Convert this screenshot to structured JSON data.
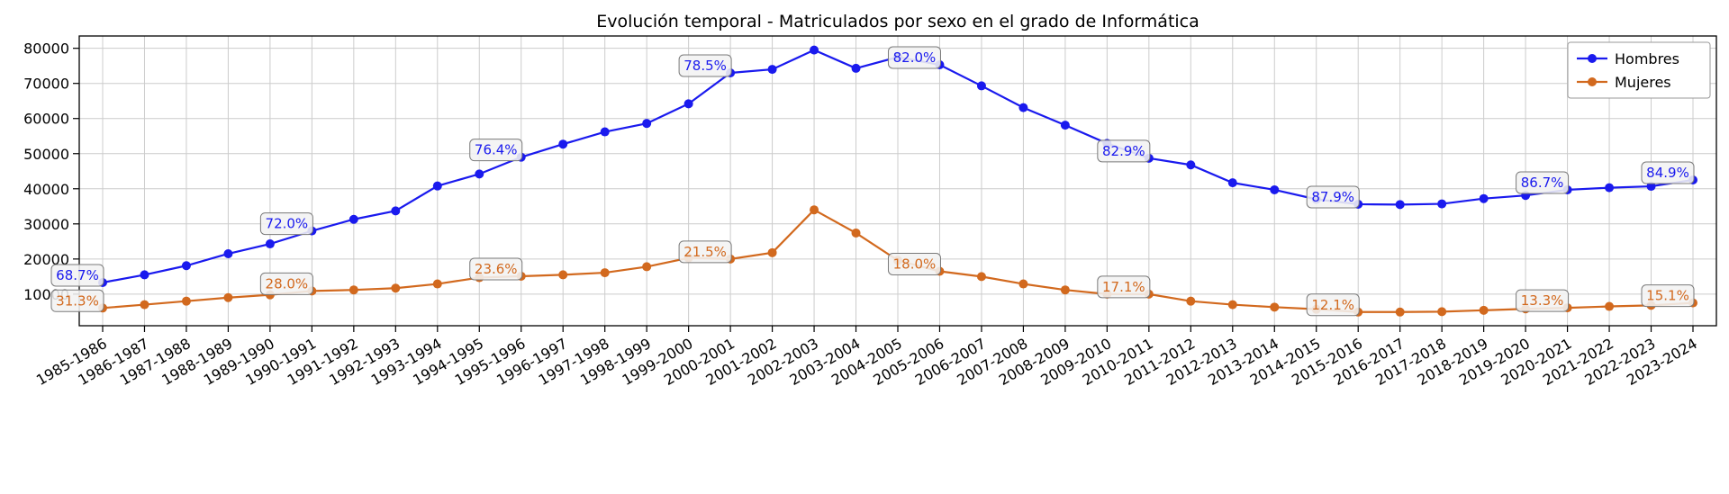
{
  "chart_data": {
    "type": "line",
    "title": "Evolución temporal - Matriculados por sexo en el grado de Informática",
    "xlabel": "",
    "ylabel": "",
    "grid": true,
    "legend_position": "upper right",
    "ylim": [
      1000,
      83500
    ],
    "y_ticks": [
      10000,
      20000,
      30000,
      40000,
      50000,
      60000,
      70000,
      80000
    ],
    "categories": [
      "1985-1986",
      "1986-1987",
      "1987-1988",
      "1988-1989",
      "1989-1990",
      "1990-1991",
      "1991-1992",
      "1992-1993",
      "1993-1994",
      "1994-1995",
      "1995-1996",
      "1996-1997",
      "1997-1998",
      "1998-1999",
      "1999-2000",
      "2000-2001",
      "2001-2002",
      "2002-2003",
      "2003-2004",
      "2004-2005",
      "2005-2006",
      "2006-2007",
      "2007-2008",
      "2008-2009",
      "2009-2010",
      "2010-2011",
      "2011-2012",
      "2012-2013",
      "2013-2014",
      "2014-2015",
      "2015-2016",
      "2016-2017",
      "2017-2018",
      "2018-2019",
      "2019-2020",
      "2020-2021",
      "2021-2022",
      "2022-2023",
      "2023-2024"
    ],
    "series": [
      {
        "name": "Hombres",
        "color": "#1a1aee",
        "values": [
          13300,
          15500,
          18100,
          21500,
          24300,
          28000,
          31300,
          33700,
          40800,
          44200,
          49000,
          52700,
          56200,
          58600,
          64200,
          73000,
          74000,
          79500,
          74300,
          77500,
          75300,
          69300,
          63100,
          58100,
          52900,
          48700,
          46800,
          41700,
          39700,
          37000,
          35600,
          35500,
          35700,
          37200,
          38100,
          39700,
          40300,
          40700,
          42500
        ],
        "annotations": [
          {
            "index": 0,
            "label": "68.7%"
          },
          {
            "index": 5,
            "label": "72.0%"
          },
          {
            "index": 10,
            "label": "76.4%"
          },
          {
            "index": 15,
            "label": "78.5%"
          },
          {
            "index": 20,
            "label": "82.0%"
          },
          {
            "index": 25,
            "label": "82.9%"
          },
          {
            "index": 30,
            "label": "87.9%"
          },
          {
            "index": 35,
            "label": "86.7%"
          },
          {
            "index": 38,
            "label": "84.9%"
          }
        ]
      },
      {
        "name": "Mujeres",
        "color": "#d2691e",
        "values": [
          6050,
          7000,
          8000,
          9000,
          9800,
          10900,
          11200,
          11700,
          12900,
          14700,
          15100,
          15500,
          16100,
          17800,
          20300,
          20000,
          21800,
          34000,
          27400,
          19600,
          16500,
          15000,
          12900,
          11200,
          10000,
          10000,
          8000,
          7000,
          6300,
          5700,
          4900,
          4900,
          5000,
          5400,
          5800,
          6100,
          6500,
          6800,
          7500
        ],
        "annotations": [
          {
            "index": 0,
            "label": "31.3%"
          },
          {
            "index": 5,
            "label": "28.0%"
          },
          {
            "index": 10,
            "label": "23.6%"
          },
          {
            "index": 15,
            "label": "21.5%"
          },
          {
            "index": 20,
            "label": "18.0%"
          },
          {
            "index": 25,
            "label": "17.1%"
          },
          {
            "index": 30,
            "label": "12.1%"
          },
          {
            "index": 35,
            "label": "13.3%"
          },
          {
            "index": 38,
            "label": "15.1%"
          }
        ]
      }
    ],
    "annotation_box": {
      "fill": "#f2f2f2",
      "stroke": "#7a7a7a"
    },
    "colors": {
      "grid": "#cccccc",
      "axis": "#000000",
      "background": "#ffffff"
    }
  }
}
